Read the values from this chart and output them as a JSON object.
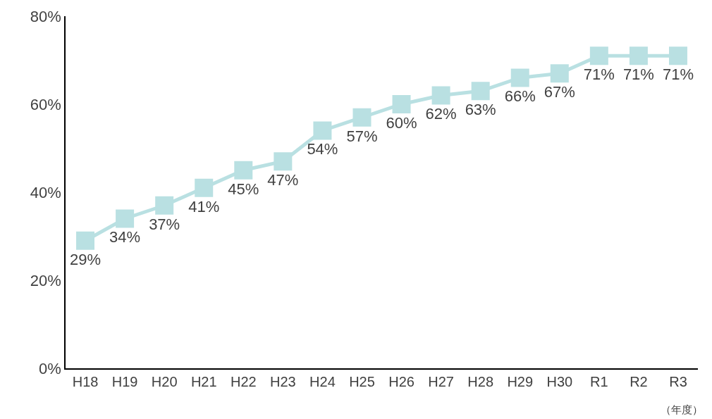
{
  "chart_data": {
    "type": "line",
    "xlabel": "（年度）",
    "categories": [
      "H18",
      "H19",
      "H20",
      "H21",
      "H22",
      "H23",
      "H24",
      "H25",
      "H26",
      "H27",
      "H28",
      "H29",
      "H30",
      "R1",
      "R2",
      "R3"
    ],
    "series": [
      {
        "color": "#b9e0e2",
        "values": [
          29,
          34,
          37,
          41,
          45,
          47,
          54,
          57,
          60,
          62,
          63,
          66,
          67,
          71,
          71,
          71
        ],
        "value_labels": [
          "29%",
          "34%",
          "37%",
          "41%",
          "45%",
          "47%",
          "54%",
          "57%",
          "60%",
          "62%",
          "63%",
          "66%",
          "67%",
          "71%",
          "71%",
          "71%"
        ]
      }
    ],
    "ylim": [
      0,
      80
    ],
    "yticks": [
      {
        "value": 0,
        "label": "0%"
      },
      {
        "value": 20,
        "label": "20%"
      },
      {
        "value": 40,
        "label": "40%"
      },
      {
        "value": 60,
        "label": "60%"
      },
      {
        "value": 80,
        "label": "80%"
      }
    ],
    "grid": false,
    "legend": false,
    "marker": "square",
    "line_style": "solid"
  }
}
